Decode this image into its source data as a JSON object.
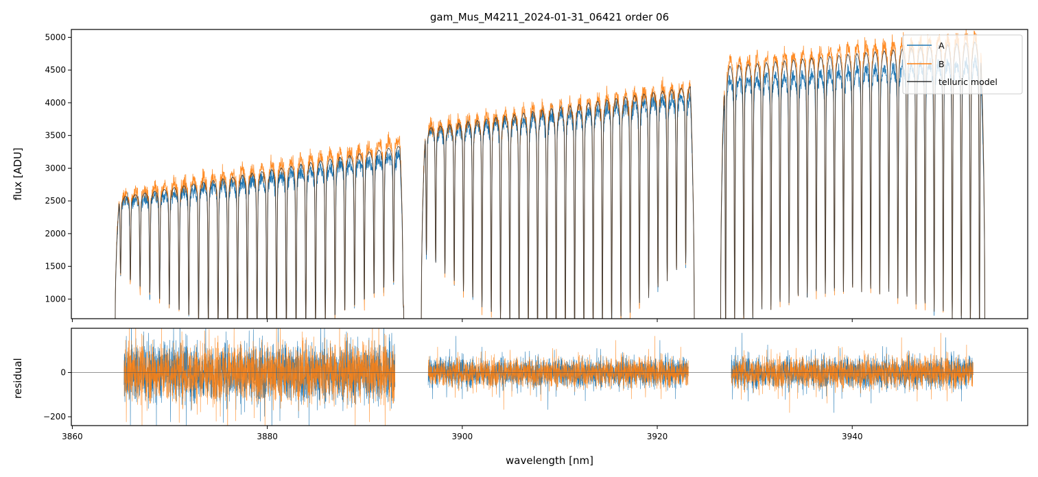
{
  "chart_data": [
    {
      "type": "line",
      "title": "gam_Mus_M4211_2024-01-31_06421  order 06",
      "ylabel": "flux [ADU]",
      "xlim": [
        3859.9,
        3958.0
      ],
      "ylim": [
        700,
        5120
      ],
      "yticks": [
        "1000",
        "1500",
        "2000",
        "2500",
        "3000",
        "3500",
        "4000",
        "4500",
        "5000"
      ],
      "legend_position": "top-right",
      "series": [
        {
          "name": "A",
          "color": "#1f77b4"
        },
        {
          "name": "B",
          "color": "#ff7f0e"
        },
        {
          "name": "telluric model",
          "color": "#333333"
        }
      ],
      "segments": [
        {
          "x_range": [
            3864.4,
            3894.0
          ],
          "continuum_A": [
            2480,
            3220
          ],
          "continuum_B": [
            2580,
            3450
          ],
          "continuum_model": [
            2540,
            3350
          ],
          "line_spacing": 1.0,
          "line_depth_min": [
            1550,
            700
          ]
        },
        {
          "x_range": [
            3895.8,
            3923.8
          ],
          "continuum_A": [
            3560,
            4120
          ],
          "continuum_B": [
            3640,
            4300
          ],
          "continuum_model": [
            3600,
            4260
          ],
          "line_spacing": 0.95,
          "line_depth_min": [
            1950,
            750
          ]
        },
        {
          "x_range": [
            3926.5,
            3953.6
          ],
          "continuum_A": [
            4350,
            4650
          ],
          "continuum_B": [
            4650,
            5050
          ],
          "continuum_model": [
            4550,
            4950
          ],
          "line_spacing": 0.93,
          "line_depth_min": [
            900,
            1500
          ]
        }
      ]
    },
    {
      "type": "line",
      "ylabel": "residual",
      "xlabel": "wavelength [nm]",
      "xlim": [
        3859.9,
        3958.0
      ],
      "ylim": [
        -240,
        200
      ],
      "xticks": [
        "3860",
        "3880",
        "3900",
        "3920",
        "3940"
      ],
      "yticks": [
        "−200",
        "0"
      ],
      "zero_line": true,
      "series": [
        {
          "name": "A",
          "color": "#1f77b4"
        },
        {
          "name": "B",
          "color": "#ff7f0e"
        }
      ],
      "residual_ranges": [
        [
          3865.3,
          3893.1
        ],
        [
          3896.5,
          3923.2
        ],
        [
          3927.6,
          3952.4
        ]
      ],
      "residual_scatter": [
        120,
        60,
        65
      ]
    }
  ]
}
